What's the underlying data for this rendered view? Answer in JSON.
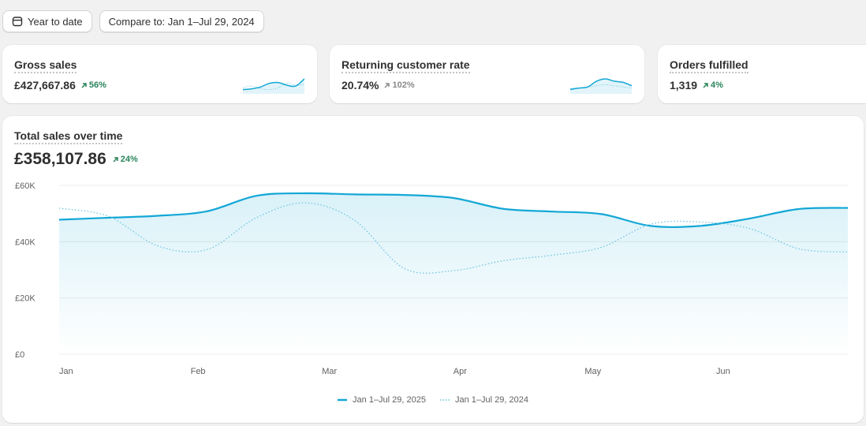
{
  "toolbar": {
    "date_range_label": "Year to date",
    "compare_label": "Compare to: Jan 1–Jul 29, 2024"
  },
  "metrics": [
    {
      "title": "Gross sales",
      "value": "£427,667.86",
      "trend": "56%",
      "trend_dir": "up"
    },
    {
      "title": "Returning customer rate",
      "value": "20.74%",
      "trend": "102%",
      "trend_dir": "neutral"
    },
    {
      "title": "Orders fulfilled",
      "value": "1,319",
      "trend": "4%",
      "trend_dir": "up"
    }
  ],
  "main_chart": {
    "title": "Total sales over time",
    "total": "£358,107.86",
    "trend": "24%"
  },
  "colors": {
    "primary_series": "#13a7d6",
    "compare_series": "#6fc6de",
    "positive": "#29845a"
  },
  "chart_data": {
    "type": "line",
    "x_tick_labels": [
      "Jan",
      "Feb",
      "Mar",
      "Apr",
      "May",
      "Jun"
    ],
    "y_tick_labels": [
      "£0",
      "£20K",
      "£40K",
      "£60K"
    ],
    "ylim": [
      0,
      60000
    ],
    "grid": true,
    "legend_position": "bottom",
    "series": [
      {
        "name": "Jan 1–Jul 29, 2025",
        "style": "solid",
        "values": [
          47800,
          48500,
          49200,
          50800,
          56300,
          57200,
          56800,
          56600,
          55500,
          51700,
          50700,
          49800,
          45600,
          45600,
          48200,
          51600,
          52000
        ]
      },
      {
        "name": "Jan 1–Jul 29, 2024",
        "style": "dotted",
        "values": [
          51900,
          49000,
          38500,
          37200,
          48500,
          53800,
          47500,
          30500,
          29700,
          33200,
          35200,
          38000,
          46200,
          47000,
          44700,
          37500,
          36300
        ]
      }
    ]
  },
  "metric_sparks": [
    {
      "solid": [
        2,
        3,
        5,
        9,
        10,
        7,
        6,
        14
      ],
      "dotted": [
        4,
        6,
        3,
        2,
        4,
        9,
        7,
        8
      ]
    },
    {
      "solid": [
        2,
        3,
        4,
        9,
        11,
        9,
        8,
        5
      ],
      "dotted": [
        1,
        3,
        4,
        5,
        6,
        5,
        4,
        3
      ]
    }
  ]
}
